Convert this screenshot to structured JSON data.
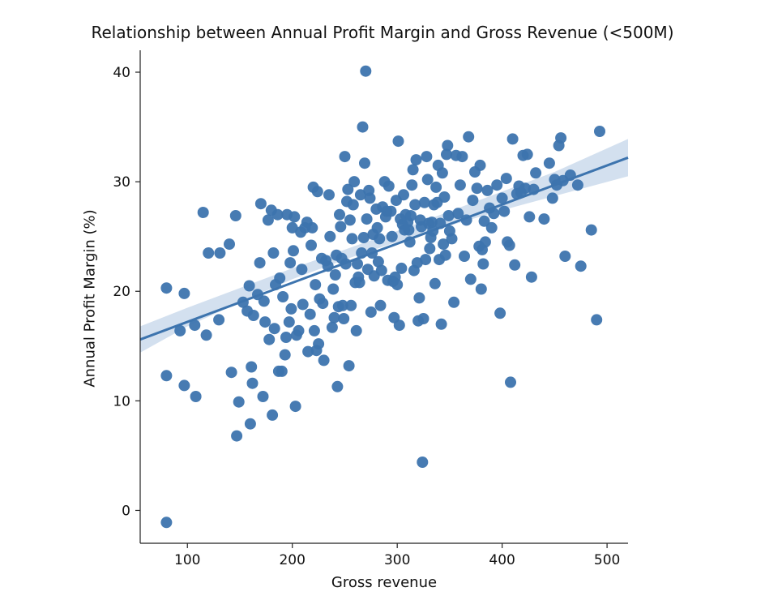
{
  "chart_data": {
    "type": "scatter",
    "title": "Relationship between Annual Profit Margin and Gross Revenue (<500M)",
    "xlabel": "Gross revenue",
    "ylabel": "Annual Profit Margin (%)",
    "xlim": [
      55,
      520
    ],
    "ylim": [
      -3,
      42
    ],
    "x_ticks": [
      100,
      200,
      300,
      400,
      500
    ],
    "y_ticks": [
      0,
      10,
      20,
      30,
      40
    ],
    "grid": false,
    "colors": {
      "points": "#3d74ae",
      "line": "#3d74ae",
      "band": "#c4d6ea"
    },
    "regression": {
      "x": [
        55,
        520
      ],
      "y": [
        15.6,
        32.2
      ]
    },
    "confidence_band": {
      "x": [
        55,
        100,
        150,
        200,
        250,
        300,
        350,
        400,
        450,
        520
      ],
      "lower": [
        14.4,
        16.8,
        19.0,
        21.1,
        22.9,
        24.5,
        26.0,
        27.4,
        28.7,
        30.5
      ],
      "upper": [
        16.8,
        18.5,
        20.3,
        22.1,
        23.8,
        25.5,
        27.3,
        29.1,
        30.9,
        33.9
      ]
    },
    "points": [
      [
        80,
        20.3
      ],
      [
        80,
        12.3
      ],
      [
        80,
        -1.1
      ],
      [
        93,
        16.4
      ],
      [
        97,
        19.8
      ],
      [
        97,
        11.4
      ],
      [
        107,
        16.9
      ],
      [
        108,
        10.4
      ],
      [
        115,
        27.2
      ],
      [
        118,
        16.0
      ],
      [
        120,
        23.5
      ],
      [
        130,
        17.4
      ],
      [
        131,
        23.5
      ],
      [
        140,
        24.3
      ],
      [
        142,
        12.6
      ],
      [
        146,
        26.9
      ],
      [
        147,
        6.8
      ],
      [
        149,
        9.9
      ],
      [
        153,
        19.0
      ],
      [
        157,
        18.2
      ],
      [
        159,
        20.5
      ],
      [
        160,
        7.9
      ],
      [
        161,
        13.1
      ],
      [
        162,
        11.6
      ],
      [
        163,
        17.8
      ],
      [
        167,
        19.7
      ],
      [
        169,
        22.6
      ],
      [
        170,
        28.0
      ],
      [
        172,
        10.4
      ],
      [
        173,
        19.1
      ],
      [
        174,
        17.2
      ],
      [
        177,
        26.5
      ],
      [
        178,
        15.6
      ],
      [
        180,
        27.4
      ],
      [
        181,
        8.7
      ],
      [
        182,
        23.5
      ],
      [
        183,
        16.6
      ],
      [
        184,
        20.6
      ],
      [
        186,
        27.0
      ],
      [
        187,
        12.7
      ],
      [
        188,
        21.2
      ],
      [
        190,
        12.7
      ],
      [
        191,
        19.5
      ],
      [
        193,
        14.2
      ],
      [
        194,
        15.8
      ],
      [
        195,
        27.0
      ],
      [
        197,
        17.2
      ],
      [
        198,
        22.6
      ],
      [
        199,
        18.4
      ],
      [
        200,
        25.8
      ],
      [
        201,
        23.7
      ],
      [
        202,
        26.8
      ],
      [
        203,
        9.5
      ],
      [
        204,
        16.0
      ],
      [
        206,
        16.4
      ],
      [
        208,
        25.4
      ],
      [
        209,
        22.0
      ],
      [
        210,
        18.8
      ],
      [
        212,
        25.8
      ],
      [
        214,
        26.3
      ],
      [
        215,
        14.5
      ],
      [
        217,
        17.9
      ],
      [
        218,
        24.2
      ],
      [
        219,
        25.8
      ],
      [
        220,
        29.5
      ],
      [
        221,
        16.4
      ],
      [
        222,
        20.6
      ],
      [
        223,
        14.6
      ],
      [
        224,
        29.1
      ],
      [
        225,
        15.2
      ],
      [
        226,
        19.3
      ],
      [
        228,
        23.0
      ],
      [
        229,
        18.9
      ],
      [
        230,
        13.7
      ],
      [
        232,
        22.8
      ],
      [
        234,
        22.3
      ],
      [
        235,
        28.8
      ],
      [
        236,
        25.0
      ],
      [
        238,
        16.7
      ],
      [
        239,
        20.2
      ],
      [
        240,
        17.6
      ],
      [
        241,
        21.5
      ],
      [
        242,
        23.3
      ],
      [
        243,
        11.3
      ],
      [
        244,
        18.6
      ],
      [
        245,
        27.0
      ],
      [
        246,
        25.9
      ],
      [
        247,
        23.0
      ],
      [
        248,
        18.7
      ],
      [
        249,
        17.5
      ],
      [
        250,
        32.3
      ],
      [
        251,
        22.5
      ],
      [
        252,
        28.2
      ],
      [
        253,
        29.3
      ],
      [
        254,
        13.2
      ],
      [
        255,
        26.5
      ],
      [
        256,
        18.7
      ],
      [
        257,
        24.8
      ],
      [
        258,
        27.9
      ],
      [
        259,
        30.0
      ],
      [
        260,
        20.8
      ],
      [
        261,
        16.4
      ],
      [
        262,
        22.5
      ],
      [
        263,
        21.3
      ],
      [
        264,
        20.8
      ],
      [
        265,
        28.8
      ],
      [
        266,
        23.5
      ],
      [
        267,
        35.0
      ],
      [
        268,
        24.9
      ],
      [
        269,
        31.7
      ],
      [
        270,
        40.1
      ],
      [
        271,
        26.6
      ],
      [
        272,
        22.0
      ],
      [
        273,
        29.2
      ],
      [
        274,
        28.5
      ],
      [
        275,
        18.1
      ],
      [
        276,
        23.5
      ],
      [
        277,
        25.2
      ],
      [
        278,
        21.4
      ],
      [
        280,
        27.5
      ],
      [
        281,
        25.8
      ],
      [
        282,
        22.7
      ],
      [
        283,
        24.8
      ],
      [
        284,
        18.7
      ],
      [
        285,
        21.9
      ],
      [
        286,
        27.7
      ],
      [
        288,
        30.0
      ],
      [
        289,
        26.8
      ],
      [
        290,
        27.3
      ],
      [
        291,
        21.0
      ],
      [
        292,
        29.6
      ],
      [
        294,
        27.3
      ],
      [
        295,
        25.0
      ],
      [
        296,
        20.9
      ],
      [
        297,
        17.6
      ],
      [
        298,
        21.3
      ],
      [
        299,
        28.3
      ],
      [
        300,
        20.6
      ],
      [
        301,
        33.7
      ],
      [
        302,
        16.9
      ],
      [
        303,
        26.6
      ],
      [
        304,
        22.1
      ],
      [
        305,
        26.1
      ],
      [
        306,
        28.8
      ],
      [
        307,
        25.6
      ],
      [
        308,
        27.0
      ],
      [
        310,
        26.3
      ],
      [
        311,
        25.6
      ],
      [
        312,
        24.5
      ],
      [
        313,
        26.9
      ],
      [
        314,
        29.7
      ],
      [
        315,
        31.1
      ],
      [
        316,
        21.9
      ],
      [
        317,
        27.9
      ],
      [
        318,
        32.0
      ],
      [
        319,
        22.6
      ],
      [
        320,
        17.3
      ],
      [
        321,
        19.4
      ],
      [
        322,
        26.5
      ],
      [
        323,
        25.9
      ],
      [
        324,
        4.4
      ],
      [
        325,
        17.5
      ],
      [
        326,
        28.1
      ],
      [
        327,
        22.9
      ],
      [
        328,
        32.3
      ],
      [
        329,
        30.2
      ],
      [
        330,
        26.2
      ],
      [
        331,
        23.9
      ],
      [
        332,
        24.9
      ],
      [
        333,
        26.3
      ],
      [
        334,
        25.5
      ],
      [
        335,
        27.9
      ],
      [
        336,
        20.7
      ],
      [
        337,
        29.5
      ],
      [
        338,
        28.1
      ],
      [
        339,
        31.5
      ],
      [
        340,
        22.9
      ],
      [
        341,
        26.2
      ],
      [
        342,
        17.0
      ],
      [
        343,
        30.8
      ],
      [
        344,
        24.3
      ],
      [
        345,
        28.6
      ],
      [
        346,
        23.3
      ],
      [
        347,
        32.5
      ],
      [
        348,
        33.3
      ],
      [
        349,
        26.9
      ],
      [
        350,
        25.5
      ],
      [
        352,
        24.8
      ],
      [
        354,
        19.0
      ],
      [
        356,
        32.4
      ],
      [
        358,
        27.1
      ],
      [
        360,
        29.7
      ],
      [
        362,
        32.3
      ],
      [
        364,
        23.2
      ],
      [
        366,
        26.5
      ],
      [
        368,
        34.1
      ],
      [
        370,
        21.1
      ],
      [
        372,
        28.3
      ],
      [
        374,
        30.9
      ],
      [
        376,
        29.4
      ],
      [
        378,
        24.1
      ],
      [
        379,
        31.5
      ],
      [
        380,
        20.2
      ],
      [
        381,
        23.8
      ],
      [
        382,
        22.5
      ],
      [
        383,
        26.4
      ],
      [
        384,
        24.5
      ],
      [
        386,
        29.2
      ],
      [
        388,
        27.6
      ],
      [
        390,
        25.8
      ],
      [
        392,
        27.1
      ],
      [
        395,
        29.7
      ],
      [
        398,
        18.0
      ],
      [
        400,
        28.5
      ],
      [
        402,
        27.3
      ],
      [
        404,
        30.3
      ],
      [
        405,
        24.5
      ],
      [
        407,
        24.2
      ],
      [
        408,
        11.7
      ],
      [
        410,
        33.9
      ],
      [
        412,
        22.4
      ],
      [
        414,
        28.9
      ],
      [
        416,
        29.6
      ],
      [
        418,
        29.0
      ],
      [
        420,
        32.4
      ],
      [
        422,
        29.4
      ],
      [
        424,
        32.5
      ],
      [
        426,
        26.8
      ],
      [
        428,
        21.3
      ],
      [
        430,
        29.3
      ],
      [
        432,
        30.8
      ],
      [
        440,
        26.6
      ],
      [
        445,
        31.7
      ],
      [
        448,
        28.5
      ],
      [
        450,
        30.2
      ],
      [
        452,
        29.7
      ],
      [
        454,
        33.3
      ],
      [
        456,
        34.0
      ],
      [
        458,
        30.1
      ],
      [
        460,
        23.2
      ],
      [
        465,
        30.6
      ],
      [
        472,
        29.7
      ],
      [
        475,
        22.3
      ],
      [
        485,
        25.6
      ],
      [
        490,
        17.4
      ],
      [
        493,
        34.6
      ]
    ]
  }
}
